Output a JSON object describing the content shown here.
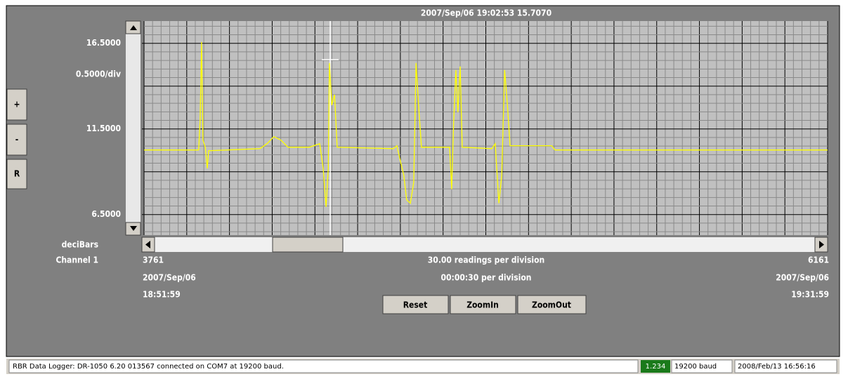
{
  "header": {
    "cursor": "2007/Sep/06 19:02:53   15.7070"
  },
  "side": {
    "scale": "0.5000/div",
    "units": "deciBars",
    "channel": "Channel 1",
    "buttons": [
      "+",
      "-",
      "R"
    ]
  },
  "chart_data": {
    "type": "line",
    "color": "#ffff00",
    "x": [
      3761,
      3953,
      3958,
      3963,
      3968,
      3976,
      3983,
      3988,
      4168,
      4193,
      4217,
      4242,
      4267,
      4341,
      4378,
      4390,
      4400,
      4408,
      4412,
      4420,
      4430,
      4439,
      4636,
      4649,
      4661,
      4673,
      4683,
      4696,
      4708,
      4716,
      4725,
      4735,
      4834,
      4841,
      4848,
      4856,
      4863,
      4871,
      4878,
      4982,
      4994,
      5007,
      5017,
      5027,
      5037,
      5046,
      5192,
      5204,
      6161
    ],
    "values": [
      10.27,
      10.27,
      12.07,
      16.58,
      10.84,
      10.43,
      9.2,
      10.23,
      10.35,
      10.64,
      11.05,
      10.84,
      10.43,
      10.43,
      10.64,
      9.2,
      6.95,
      9.2,
      15.35,
      12.89,
      13.5,
      10.43,
      10.35,
      10.52,
      9.62,
      8.8,
      7.36,
      7.16,
      8.38,
      15.35,
      12.89,
      10.43,
      10.43,
      7.98,
      11.87,
      14.94,
      12.48,
      15.15,
      10.43,
      10.35,
      10.64,
      7.16,
      8.8,
      14.94,
      12.89,
      10.52,
      10.52,
      10.27,
      10.27
    ],
    "xlim": [
      3761,
      6161
    ],
    "ylim": [
      5.3,
      17.8
    ],
    "xticks": [
      3761,
      6161
    ],
    "yticks": [
      {
        "value": 16.5,
        "label": "16.5000"
      },
      {
        "value": 11.5,
        "label": "11.5000"
      },
      {
        "value": 6.5,
        "label": "6.5000"
      }
    ]
  },
  "footer": {
    "readings": "30.00 readings per division",
    "time": "00:00:30 per division",
    "start_date": "2007/Sep/06",
    "start_time": "18:51:59",
    "end_date": "2007/Sep/06",
    "end_time": "19:31:59",
    "buttons": [
      "Reset",
      "ZoomIn",
      "ZoomOut"
    ]
  },
  "status": {
    "message": "RBR Data Logger: DR-1050  6.20 013567 connected on COM7 at 19200 baud.",
    "indicator": "1.234",
    "baud": "19200 baud",
    "datetime": "2008/Feb/13 16:56:16"
  }
}
